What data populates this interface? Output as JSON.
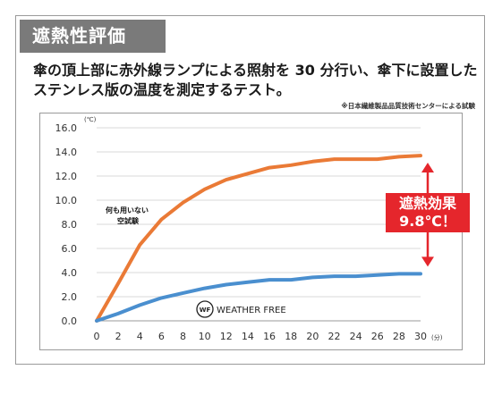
{
  "header": {
    "tag": "遮熱性評価",
    "description": "傘の頂上部に赤外線ランプによる照射を 30 分行い、傘下に設置したステンレス版の温度を測定するテスト。",
    "note": "※日本繊維製品品質技術センターによる試験"
  },
  "annotations": {
    "empty_test_line1": "何も用いない",
    "empty_test_line2": "空試験",
    "brand_logo": "WF",
    "brand_name": "WEATHER FREE",
    "effect_line1": "遮熱効果",
    "effect_line2": "9.8℃！"
  },
  "colors": {
    "orange": "#ea7a36",
    "blue": "#4a8fcf",
    "effect": "#e5262c",
    "grid": "#d9d9d9"
  },
  "chart_data": {
    "type": "line",
    "y_unit": "(℃)",
    "x_unit": "(分)",
    "ylim": [
      0,
      16
    ],
    "y_ticks": [
      "0.0",
      "2.0",
      "4.0",
      "6.0",
      "8.0",
      "10.0",
      "12.0",
      "14.0",
      "16.0"
    ],
    "x": [
      0,
      2,
      4,
      6,
      8,
      10,
      12,
      14,
      16,
      18,
      20,
      22,
      24,
      26,
      28,
      30
    ],
    "grid": true,
    "series": [
      {
        "values": [
          0,
          3.1,
          6.3,
          8.4,
          9.8,
          10.9,
          11.7,
          12.2,
          12.7,
          12.9,
          13.2,
          13.4,
          13.4,
          13.4,
          13.6,
          13.7
        ]
      },
      {
        "values": [
          0,
          0.6,
          1.3,
          1.9,
          2.3,
          2.7,
          3.0,
          3.2,
          3.4,
          3.4,
          3.6,
          3.7,
          3.7,
          3.8,
          3.9,
          3.9
        ]
      }
    ]
  }
}
